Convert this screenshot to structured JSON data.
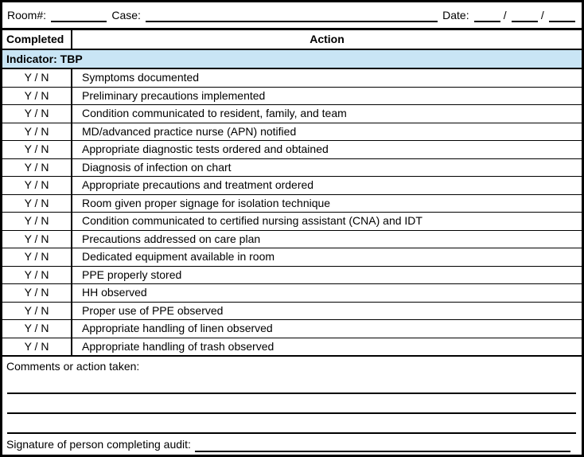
{
  "header": {
    "room_label": "Room#:",
    "case_label": "Case:",
    "date_label": "Date:",
    "slash": "/"
  },
  "table": {
    "completed_header": "Completed",
    "action_header": "Action",
    "indicator_label": "Indicator: TBP",
    "yn_label": "Y / N",
    "rows": [
      "Symptoms documented",
      "Preliminary precautions implemented",
      "Condition communicated to resident, family, and team",
      "MD/advanced practice nurse (APN) notified",
      "Appropriate diagnostic tests ordered and obtained",
      "Diagnosis of infection on chart",
      "Appropriate precautions and treatment ordered",
      "Room given proper signage for isolation technique",
      "Condition communicated to certified nursing assistant (CNA) and IDT",
      "Precautions addressed on care plan",
      "Dedicated equipment available in room",
      "PPE properly stored",
      "HH observed",
      "Proper use of PPE observed",
      "Appropriate handling of linen observed",
      "Appropriate handling of trash observed"
    ]
  },
  "footer": {
    "comments_label": "Comments or action taken:",
    "comment_line_count": 3,
    "signature_label": "Signature of person completing audit:"
  },
  "colors": {
    "indicator_bg": "#c9e5f5",
    "border": "#000000"
  }
}
